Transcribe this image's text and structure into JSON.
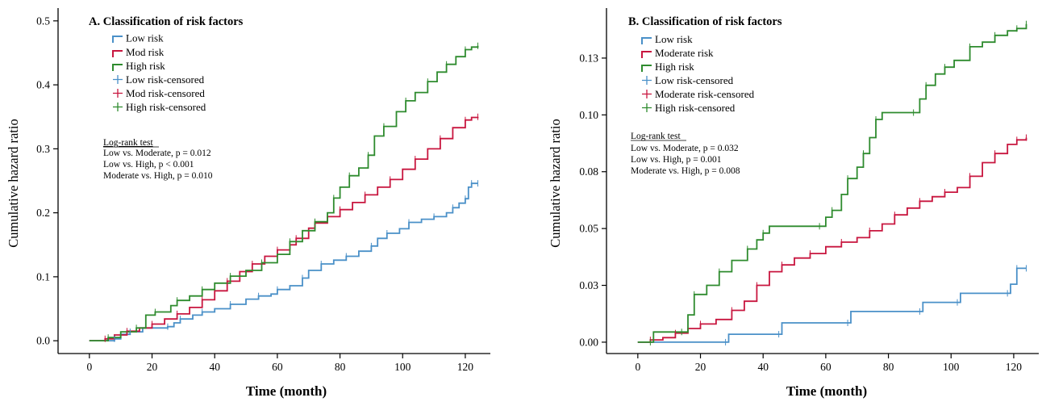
{
  "chart_data": [
    {
      "type": "line",
      "title": "A. Classification of risk factors",
      "xlabel": "Time (month)",
      "ylabel": "Cumulative hazard ratio",
      "xlim": [
        -10,
        128
      ],
      "ylim": [
        -0.02,
        0.52
      ],
      "xticks": [
        0,
        20,
        40,
        60,
        80,
        100,
        120
      ],
      "yticks": [
        0.0,
        0.1,
        0.2,
        0.3,
        0.4,
        0.5
      ],
      "ytick_labels": [
        "0.0",
        "0.1",
        "0.2",
        "0.3",
        "0.4",
        "0.5"
      ],
      "legend": [
        {
          "label": "Low risk",
          "color": "#4a90c8",
          "kind": "step"
        },
        {
          "label": "Mod risk",
          "color": "#c8163f",
          "kind": "step"
        },
        {
          "label": "High risk",
          "color": "#2e8b2e",
          "kind": "step"
        },
        {
          "label": "Low risk-censored",
          "color": "#4a90c8",
          "kind": "censor"
        },
        {
          "label": "Mod risk-censored",
          "color": "#c8163f",
          "kind": "censor"
        },
        {
          "label": "High risk-censored",
          "color": "#2e8b2e",
          "kind": "censor"
        }
      ],
      "annotation": {
        "heading": "Log-rank test",
        "lines": [
          "Low vs. Moderate, p = 0.012",
          "Low vs. High, p < 0.001",
          "Moderate vs. High, p = 0.010"
        ]
      },
      "series": [
        {
          "name": "Low risk",
          "color": "#4a90c8",
          "points": [
            [
              0,
              0
            ],
            [
              8,
              0.003
            ],
            [
              10,
              0.01
            ],
            [
              13,
              0.014
            ],
            [
              17,
              0.02
            ],
            [
              25,
              0.022
            ],
            [
              27,
              0.028
            ],
            [
              29,
              0.034
            ],
            [
              33,
              0.04
            ],
            [
              36,
              0.045
            ],
            [
              40,
              0.05
            ],
            [
              45,
              0.057
            ],
            [
              50,
              0.065
            ],
            [
              54,
              0.07
            ],
            [
              58,
              0.073
            ],
            [
              60,
              0.08
            ],
            [
              64,
              0.086
            ],
            [
              68,
              0.098
            ],
            [
              70,
              0.11
            ],
            [
              74,
              0.12
            ],
            [
              78,
              0.126
            ],
            [
              82,
              0.132
            ],
            [
              86,
              0.14
            ],
            [
              90,
              0.148
            ],
            [
              92,
              0.16
            ],
            [
              95,
              0.168
            ],
            [
              99,
              0.175
            ],
            [
              102,
              0.185
            ],
            [
              106,
              0.19
            ],
            [
              110,
              0.194
            ],
            [
              114,
              0.2
            ],
            [
              116,
              0.208
            ],
            [
              118,
              0.215
            ],
            [
              120,
              0.222
            ],
            [
              121,
              0.24
            ],
            [
              122,
              0.246
            ],
            [
              124,
              0.246
            ]
          ]
        },
        {
          "name": "Mod risk",
          "color": "#c8163f",
          "points": [
            [
              0,
              0
            ],
            [
              5,
              0.003
            ],
            [
              8,
              0.009
            ],
            [
              12,
              0.015
            ],
            [
              16,
              0.02
            ],
            [
              20,
              0.026
            ],
            [
              24,
              0.034
            ],
            [
              28,
              0.042
            ],
            [
              32,
              0.052
            ],
            [
              36,
              0.064
            ],
            [
              40,
              0.078
            ],
            [
              44,
              0.093
            ],
            [
              48,
              0.108
            ],
            [
              52,
              0.12
            ],
            [
              56,
              0.132
            ],
            [
              60,
              0.142
            ],
            [
              64,
              0.15
            ],
            [
              66,
              0.16
            ],
            [
              70,
              0.176
            ],
            [
              72,
              0.184
            ],
            [
              76,
              0.194
            ],
            [
              80,
              0.205
            ],
            [
              84,
              0.216
            ],
            [
              88,
              0.228
            ],
            [
              92,
              0.24
            ],
            [
              96,
              0.252
            ],
            [
              100,
              0.268
            ],
            [
              104,
              0.284
            ],
            [
              108,
              0.3
            ],
            [
              112,
              0.316
            ],
            [
              116,
              0.333
            ],
            [
              120,
              0.345
            ],
            [
              122,
              0.349
            ],
            [
              124,
              0.35
            ]
          ]
        },
        {
          "name": "High risk",
          "color": "#2e8b2e",
          "points": [
            [
              0,
              0
            ],
            [
              6,
              0.005
            ],
            [
              10,
              0.014
            ],
            [
              15,
              0.02
            ],
            [
              18,
              0.04
            ],
            [
              21,
              0.045
            ],
            [
              26,
              0.055
            ],
            [
              28,
              0.063
            ],
            [
              32,
              0.07
            ],
            [
              36,
              0.08
            ],
            [
              40,
              0.09
            ],
            [
              45,
              0.101
            ],
            [
              50,
              0.11
            ],
            [
              55,
              0.122
            ],
            [
              60,
              0.135
            ],
            [
              64,
              0.155
            ],
            [
              68,
              0.172
            ],
            [
              72,
              0.186
            ],
            [
              76,
              0.2
            ],
            [
              78,
              0.223
            ],
            [
              80,
              0.24
            ],
            [
              83,
              0.258
            ],
            [
              86,
              0.27
            ],
            [
              89,
              0.29
            ],
            [
              91,
              0.32
            ],
            [
              94,
              0.335
            ],
            [
              98,
              0.358
            ],
            [
              101,
              0.375
            ],
            [
              104,
              0.388
            ],
            [
              108,
              0.405
            ],
            [
              111,
              0.42
            ],
            [
              114,
              0.432
            ],
            [
              117,
              0.444
            ],
            [
              120,
              0.455
            ],
            [
              122,
              0.459
            ],
            [
              124,
              0.461
            ]
          ]
        }
      ]
    },
    {
      "type": "line",
      "title": "B. Classification of risk factors",
      "xlabel": "Time (month)",
      "ylabel": "Cumulative hazard ratio",
      "xlim": [
        -10,
        128
      ],
      "ylim": [
        -0.005,
        0.147
      ],
      "xticks": [
        0,
        20,
        40,
        60,
        80,
        100,
        120
      ],
      "yticks": [
        0.0,
        0.025,
        0.05,
        0.075,
        0.1,
        0.125
      ],
      "ytick_labels": [
        "0.00",
        "0.03",
        "0.05",
        "0.08",
        "0.10",
        "0.13"
      ],
      "legend": [
        {
          "label": "Low risk",
          "color": "#4a90c8",
          "kind": "step"
        },
        {
          "label": "Moderate risk",
          "color": "#c8163f",
          "kind": "step"
        },
        {
          "label": "High risk",
          "color": "#2e8b2e",
          "kind": "step"
        },
        {
          "label": "Low risk-censored",
          "color": "#4a90c8",
          "kind": "censor"
        },
        {
          "label": "Moderate risk-censored",
          "color": "#c8163f",
          "kind": "censor"
        },
        {
          "label": "High risk-censored",
          "color": "#2e8b2e",
          "kind": "censor"
        }
      ],
      "annotation": {
        "heading": "Log-rank test",
        "lines": [
          "Low vs. Moderate, p = 0.032",
          "Low vs. High, p = 0.001",
          "Moderate vs. High, p = 0.008"
        ]
      },
      "series": [
        {
          "name": "Low risk",
          "color": "#4a90c8",
          "points": [
            [
              0,
              0
            ],
            [
              28,
              0
            ],
            [
              29,
              0.0035
            ],
            [
              45,
              0.0035
            ],
            [
              46,
              0.0085
            ],
            [
              67,
              0.0085
            ],
            [
              68,
              0.0135
            ],
            [
              90,
              0.0135
            ],
            [
              91,
              0.0175
            ],
            [
              102,
              0.0175
            ],
            [
              103,
              0.0215
            ],
            [
              118,
              0.0215
            ],
            [
              119,
              0.0255
            ],
            [
              121,
              0.0325
            ],
            [
              124,
              0.0325
            ]
          ]
        },
        {
          "name": "Moderate risk",
          "color": "#c8163f",
          "points": [
            [
              0,
              0
            ],
            [
              4,
              0.001
            ],
            [
              8,
              0.002
            ],
            [
              12,
              0.004
            ],
            [
              16,
              0.006
            ],
            [
              20,
              0.008
            ],
            [
              25,
              0.01
            ],
            [
              30,
              0.014
            ],
            [
              34,
              0.018
            ],
            [
              38,
              0.025
            ],
            [
              42,
              0.031
            ],
            [
              46,
              0.034
            ],
            [
              50,
              0.037
            ],
            [
              55,
              0.039
            ],
            [
              60,
              0.042
            ],
            [
              65,
              0.044
            ],
            [
              70,
              0.046
            ],
            [
              74,
              0.049
            ],
            [
              78,
              0.052
            ],
            [
              82,
              0.056
            ],
            [
              86,
              0.059
            ],
            [
              90,
              0.062
            ],
            [
              94,
              0.064
            ],
            [
              98,
              0.066
            ],
            [
              102,
              0.068
            ],
            [
              106,
              0.073
            ],
            [
              110,
              0.079
            ],
            [
              114,
              0.083
            ],
            [
              118,
              0.087
            ],
            [
              121,
              0.089
            ],
            [
              124,
              0.09
            ]
          ]
        },
        {
          "name": "High risk",
          "color": "#2e8b2e",
          "points": [
            [
              0,
              0
            ],
            [
              4,
              0
            ],
            [
              5,
              0.0045
            ],
            [
              14,
              0.0045
            ],
            [
              16,
              0.012
            ],
            [
              18,
              0.021
            ],
            [
              22,
              0.025
            ],
            [
              26,
              0.031
            ],
            [
              30,
              0.036
            ],
            [
              35,
              0.041
            ],
            [
              38,
              0.045
            ],
            [
              40,
              0.048
            ],
            [
              42,
              0.051
            ],
            [
              58,
              0.051
            ],
            [
              60,
              0.055
            ],
            [
              62,
              0.058
            ],
            [
              65,
              0.065
            ],
            [
              67,
              0.072
            ],
            [
              70,
              0.077
            ],
            [
              72,
              0.083
            ],
            [
              74,
              0.09
            ],
            [
              76,
              0.098
            ],
            [
              78,
              0.101
            ],
            [
              88,
              0.101
            ],
            [
              90,
              0.107
            ],
            [
              92,
              0.113
            ],
            [
              95,
              0.118
            ],
            [
              98,
              0.121
            ],
            [
              101,
              0.124
            ],
            [
              106,
              0.13
            ],
            [
              110,
              0.132
            ],
            [
              114,
              0.135
            ],
            [
              118,
              0.137
            ],
            [
              121,
              0.138
            ],
            [
              124,
              0.14
            ]
          ]
        }
      ]
    }
  ]
}
